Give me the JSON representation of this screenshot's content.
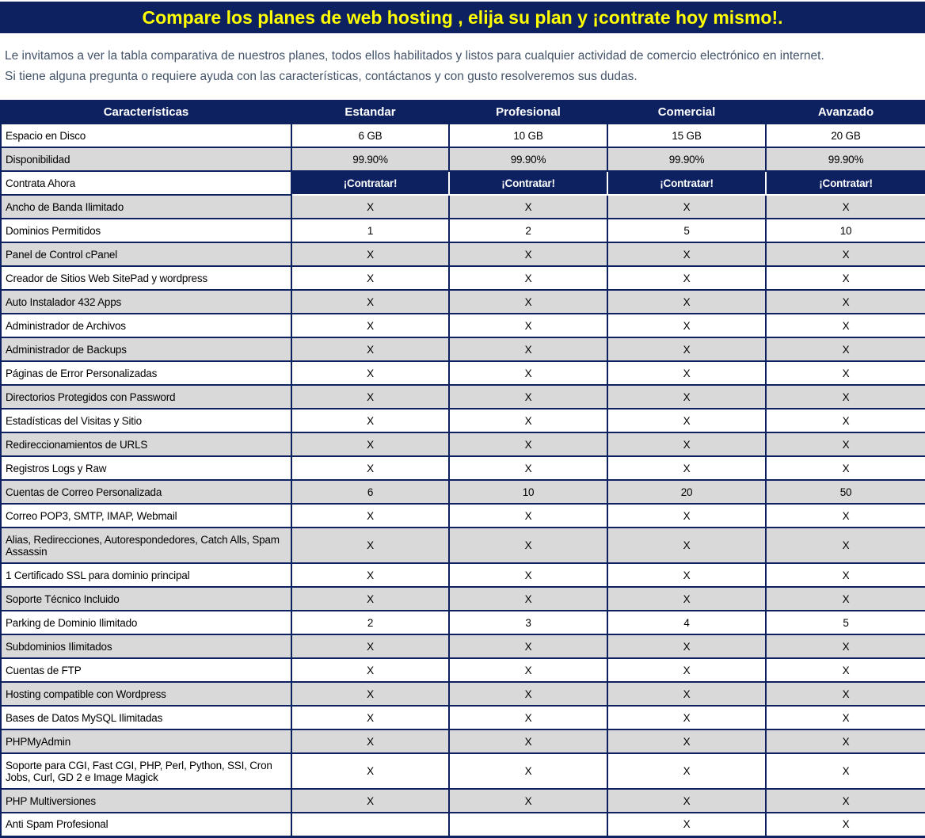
{
  "colors": {
    "navy": "#0d2161",
    "yellow": "#ffff00",
    "gray_row": "#d9d9d9",
    "intro_text": "#44546a"
  },
  "banner": {
    "title": "Compare los planes de web hosting , elija su plan y ¡contrate hoy mismo!."
  },
  "intro": {
    "line1": "Le invitamos a ver la tabla comparativa de nuestros planes, todos ellos habilitados y listos para cualquier actividad de comercio electrónico en internet.",
    "line2": "Si tiene alguna pregunta o requiere ayuda con las características, contáctanos y con gusto resolveremos sus dudas."
  },
  "table": {
    "headers": [
      "Características",
      "Estandar",
      "Profesional",
      "Comercial",
      "Avanzado"
    ],
    "rows": [
      {
        "label": "Espacio en Disco",
        "style": "white",
        "values": [
          "6 GB",
          "10 GB",
          "15 GB",
          "20 GB"
        ]
      },
      {
        "label": "Disponibilidad",
        "style": "gray",
        "values": [
          "99.90%",
          "99.90%",
          "99.90%",
          "99.90%"
        ]
      },
      {
        "label": "Contrata Ahora",
        "style": "cta",
        "values": [
          "¡Contratar!",
          "¡Contratar!",
          "¡Contratar!",
          "¡Contratar!"
        ]
      },
      {
        "label": "Ancho de Banda Ilimitado",
        "style": "gray",
        "values": [
          "X",
          "X",
          "X",
          "X"
        ]
      },
      {
        "label": "Dominios Permitidos",
        "style": "white",
        "values": [
          "1",
          "2",
          "5",
          "10"
        ]
      },
      {
        "label": "Panel de Control cPanel",
        "style": "gray",
        "values": [
          "X",
          "X",
          "X",
          "X"
        ]
      },
      {
        "label": "Creador de Sitios Web SitePad y wordpress",
        "style": "white",
        "values": [
          "X",
          "X",
          "X",
          "X"
        ]
      },
      {
        "label": "Auto Instalador 432 Apps",
        "style": "gray",
        "values": [
          "X",
          "X",
          "X",
          "X"
        ]
      },
      {
        "label": "Administrador de Archivos",
        "style": "white",
        "values": [
          "X",
          "X",
          "X",
          "X"
        ]
      },
      {
        "label": "Administrador de Backups",
        "style": "gray",
        "values": [
          "X",
          "X",
          "X",
          "X"
        ]
      },
      {
        "label": "Páginas de Error Personalizadas",
        "style": "white",
        "values": [
          "X",
          "X",
          "X",
          "X"
        ]
      },
      {
        "label": "Directorios Protegidos con Password",
        "style": "gray",
        "values": [
          "X",
          "X",
          "X",
          "X"
        ]
      },
      {
        "label": "Estadísticas del Visitas y Sitio",
        "style": "white",
        "values": [
          "X",
          "X",
          "X",
          "X"
        ]
      },
      {
        "label": "Redireccionamientos de URLS",
        "style": "gray",
        "values": [
          "X",
          "X",
          "X",
          "X"
        ]
      },
      {
        "label": "Registros Logs y Raw",
        "style": "white",
        "values": [
          "X",
          "X",
          "X",
          "X"
        ]
      },
      {
        "label": "Cuentas de Correo Personalizada",
        "style": "gray",
        "values": [
          "6",
          "10",
          "20",
          "50"
        ]
      },
      {
        "label": "Correo POP3, SMTP, IMAP, Webmail",
        "style": "white",
        "values": [
          "X",
          "X",
          "X",
          "X"
        ]
      },
      {
        "label": "Alias, Redirecciones, Autorespondedores, Catch Alls, Spam Assassin",
        "style": "gray",
        "tall": true,
        "values": [
          "X",
          "X",
          "X",
          "X"
        ]
      },
      {
        "label": "1 Certificado SSL para dominio principal",
        "style": "white",
        "values": [
          "X",
          "X",
          "X",
          "X"
        ]
      },
      {
        "label": "Soporte Técnico Incluido",
        "style": "gray",
        "values": [
          "X",
          "X",
          "X",
          "X"
        ]
      },
      {
        "label": "Parking de Dominio Ilimitado",
        "style": "white",
        "values": [
          "2",
          "3",
          "4",
          "5"
        ]
      },
      {
        "label": "Subdominios Ilimitados",
        "style": "gray",
        "values": [
          "X",
          "X",
          "X",
          "X"
        ]
      },
      {
        "label": "Cuentas de FTP",
        "style": "white",
        "values": [
          "X",
          "X",
          "X",
          "X"
        ]
      },
      {
        "label": "Hosting compatible con Wordpress",
        "style": "gray",
        "values": [
          "X",
          "X",
          "X",
          "X"
        ]
      },
      {
        "label": "Bases de Datos MySQL Ilimitadas",
        "style": "white",
        "values": [
          "X",
          "X",
          "X",
          "X"
        ]
      },
      {
        "label": "PHPMyAdmin",
        "style": "gray",
        "values": [
          "X",
          "X",
          "X",
          "X"
        ]
      },
      {
        "label": "Soporte para CGI, Fast CGI, PHP, Perl, Python, SSI, Cron Jobs, Curl, GD 2 e Image Magick",
        "style": "white",
        "tall": true,
        "values": [
          "X",
          "X",
          "X",
          "X"
        ]
      },
      {
        "label": "PHP Multiversiones",
        "style": "gray",
        "values": [
          "X",
          "X",
          "X",
          "X"
        ]
      },
      {
        "label": "Anti Spam Profesional",
        "style": "white",
        "values": [
          "",
          "",
          "X",
          "X"
        ]
      }
    ]
  }
}
